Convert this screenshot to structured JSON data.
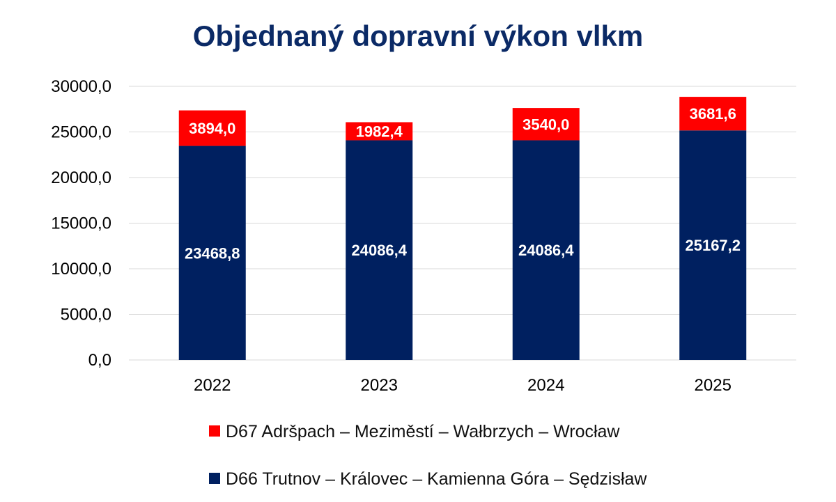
{
  "chart_data": {
    "type": "bar",
    "stacked": true,
    "title": "Objednaný dopravní výkon vlkm",
    "xlabel": "",
    "ylabel": "",
    "categories": [
      "2022",
      "2023",
      "2024",
      "2025"
    ],
    "ylim": [
      0,
      30000
    ],
    "yticks": [
      "0,0",
      "5000,0",
      "10000,0",
      "15000,0",
      "20000,0",
      "25000,0",
      "30000,0"
    ],
    "grid": true,
    "legend_position": "bottom",
    "series": [
      {
        "name": "D66 Trutnov – Královec – Kamienna Góra – Sędzisław",
        "color": "#002060",
        "values": [
          23468.8,
          24086.4,
          24086.4,
          25167.2
        ],
        "labels": [
          "23468,8",
          "24086,4",
          "24086,4",
          "25167,2"
        ]
      },
      {
        "name": "D67 Adršpach – Meziměstí – Wałbrzych – Wrocław",
        "color": "#ff0000",
        "values": [
          3894.0,
          1982.4,
          3540.0,
          3681.6
        ],
        "labels": [
          "3894,0",
          "1982,4",
          "3540,0",
          "3681,6"
        ]
      }
    ]
  }
}
